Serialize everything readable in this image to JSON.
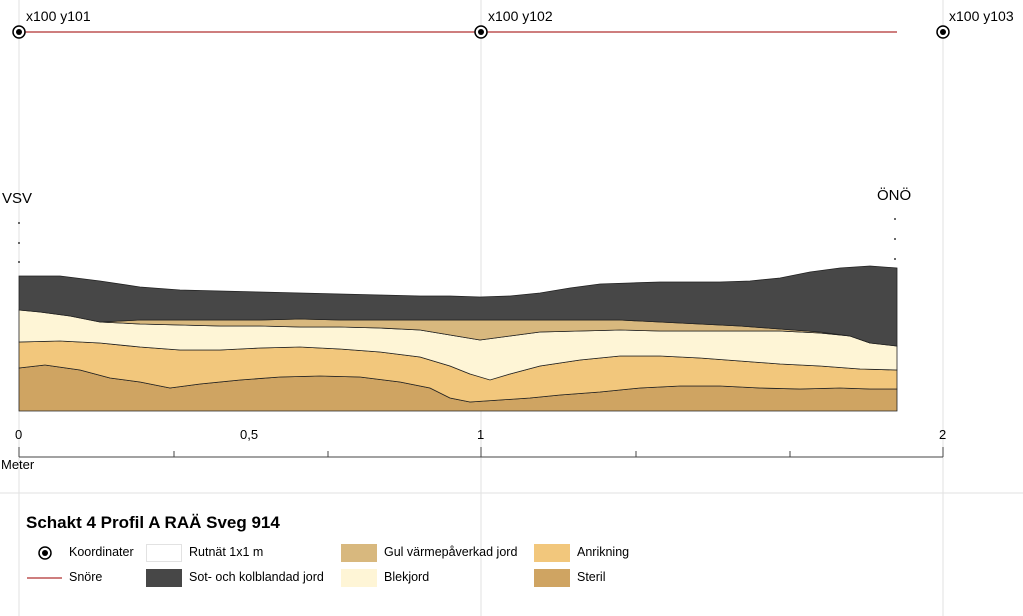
{
  "coordinates": [
    {
      "label": "x100 y101"
    },
    {
      "label": "x100 y102"
    },
    {
      "label": "x100 y103"
    }
  ],
  "directions": {
    "left": "VSV",
    "right": "ÖNÖ"
  },
  "scale": {
    "unit": "Meter",
    "ticks": [
      "0",
      "0,5",
      "1",
      "2"
    ]
  },
  "legend": {
    "title": "Schakt 4 Profil A RAÄ Sveg 914",
    "items": [
      {
        "label": "Koordinater",
        "icon": "target-icon"
      },
      {
        "label": "Snöre",
        "color": "#b03030"
      },
      {
        "label": "Rutnät 1x1 m",
        "color": "#ffffff"
      },
      {
        "label": "Sot- och kolblandad jord",
        "color": "#474747"
      },
      {
        "label": "Gul värmepåverkad jord",
        "color": "#d8b87e"
      },
      {
        "label": "Blekjord",
        "color": "#fef5d6"
      },
      {
        "label": "Anrikning",
        "color": "#f2c77c"
      },
      {
        "label": "Steril",
        "color": "#cfa462"
      }
    ]
  },
  "colors": {
    "soot": "#474747",
    "yellow_heat": "#d8b87e",
    "bleach": "#fef5d6",
    "enrich": "#f2c77c",
    "sterile": "#cfa462",
    "string": "#b03030",
    "grid": "#e2e2e2"
  }
}
